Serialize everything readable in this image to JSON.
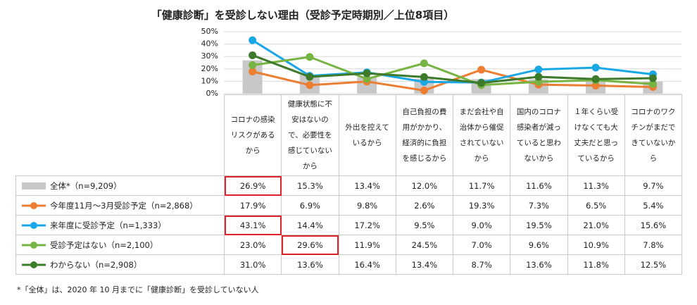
{
  "chart_data": {
    "type": "bar-line",
    "title": "「健康診断」を受診しない理由（受診予定時期別／上位8項目）",
    "categories": [
      "コロナの感染リスクがあるから",
      "健康状態に不安はないので、必要性を感じていないから",
      "外出を控えているから",
      "自己負担の費用がかかり、経済的に負担を感じるから",
      "まだ会社や自治体から催促されていないから",
      "国内のコロナ感染者が減っていると思わないから",
      "１年くらい受けなくても大丈夫だと思っているから",
      "コロナのワクチンがまだできていないから"
    ],
    "ylim": [
      0,
      50
    ],
    "yticks": [
      {
        "value": 0,
        "label": "0%"
      },
      {
        "value": 10,
        "label": "10%"
      },
      {
        "value": 20,
        "label": "20%"
      },
      {
        "value": 30,
        "label": "30%"
      },
      {
        "value": 40,
        "label": "40%"
      },
      {
        "value": 50,
        "label": "50%"
      }
    ],
    "grid": true,
    "series": [
      {
        "name": "全体*（n=9,209）",
        "mark": "bar",
        "color": "#c8c8c8",
        "values": [
          26.9,
          15.3,
          13.4,
          12.0,
          11.7,
          11.6,
          11.3,
          9.7
        ],
        "value_labels": [
          "26.9%",
          "15.3%",
          "13.4%",
          "12.0%",
          "11.7%",
          "11.6%",
          "11.3%",
          "9.7%"
        ],
        "highlight_categories": [
          0
        ]
      },
      {
        "name": "今年度11月～3月受診予定（n=2,868）",
        "mark": "line",
        "color": "#ed7d31",
        "values": [
          17.9,
          6.9,
          9.8,
          2.6,
          19.3,
          7.3,
          6.5,
          5.4
        ],
        "value_labels": [
          "17.9%",
          "6.9%",
          "9.8%",
          "2.6%",
          "19.3%",
          "7.3%",
          "6.5%",
          "5.4%"
        ],
        "highlight_categories": []
      },
      {
        "name": "来年度に受診予定（n=1,333）",
        "mark": "line",
        "color": "#1aa7e6",
        "values": [
          43.1,
          14.4,
          17.2,
          9.5,
          9.0,
          19.5,
          21.0,
          15.6
        ],
        "value_labels": [
          "43.1%",
          "14.4%",
          "17.2%",
          "9.5%",
          "9.0%",
          "19.5%",
          "21.0%",
          "15.6%"
        ],
        "highlight_categories": [
          0
        ]
      },
      {
        "name": "受診予定はない（n=2,100）",
        "mark": "line",
        "color": "#78b443",
        "values": [
          23.0,
          29.6,
          11.9,
          24.5,
          7.0,
          9.6,
          10.9,
          7.8
        ],
        "value_labels": [
          "23.0%",
          "29.6%",
          "11.9%",
          "24.5%",
          "7.0%",
          "9.6%",
          "10.9%",
          "7.8%"
        ],
        "highlight_categories": [
          1
        ]
      },
      {
        "name": "わからない（n=2,908）",
        "mark": "line",
        "color": "#3e7a2c",
        "values": [
          31.0,
          13.6,
          16.4,
          13.4,
          8.7,
          13.6,
          11.8,
          12.5
        ],
        "value_labels": [
          "31.0%",
          "13.6%",
          "16.4%",
          "13.4%",
          "8.7%",
          "13.6%",
          "11.8%",
          "12.5%"
        ],
        "highlight_categories": []
      }
    ],
    "footnote": "*「全体」は、2020 年 10 月までに「健康診断」を受診していない人"
  }
}
